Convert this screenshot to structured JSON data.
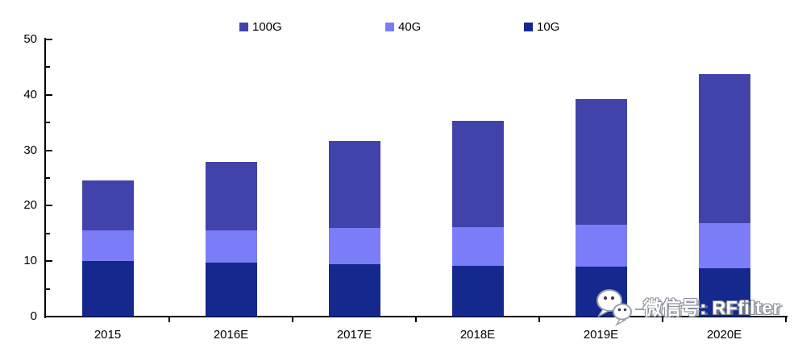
{
  "chart_data": {
    "type": "bar",
    "stacked": true,
    "title": "",
    "xlabel": "",
    "ylabel": "",
    "categories": [
      "2015",
      "2016E",
      "2017E",
      "2018E",
      "2019E",
      "2020E"
    ],
    "series": [
      {
        "name": "10G",
        "color": "#14288E",
        "values": [
          10.0,
          9.8,
          9.4,
          9.2,
          9.0,
          8.7
        ]
      },
      {
        "name": "40G",
        "color": "#7B7DF8",
        "values": [
          5.5,
          5.8,
          6.6,
          7.0,
          7.5,
          8.1
        ]
      },
      {
        "name": "100G",
        "color": "#4143AB",
        "values": [
          9.0,
          12.3,
          15.7,
          19.1,
          22.7,
          26.9
        ]
      }
    ],
    "totals": [
      24.5,
      27.9,
      31.7,
      35.3,
      39.2,
      43.7
    ],
    "legend_order": [
      "100G",
      "40G",
      "10G"
    ],
    "legend_position": "top",
    "ylim": [
      0,
      50
    ],
    "y_major_ticks": [
      0,
      10,
      20,
      30,
      40,
      50
    ],
    "y_minor_ticks": [
      5,
      15,
      25,
      35,
      45
    ],
    "grid": false
  },
  "watermark": {
    "text": "微信号: RFfilter",
    "icon": "wechat-icon"
  }
}
